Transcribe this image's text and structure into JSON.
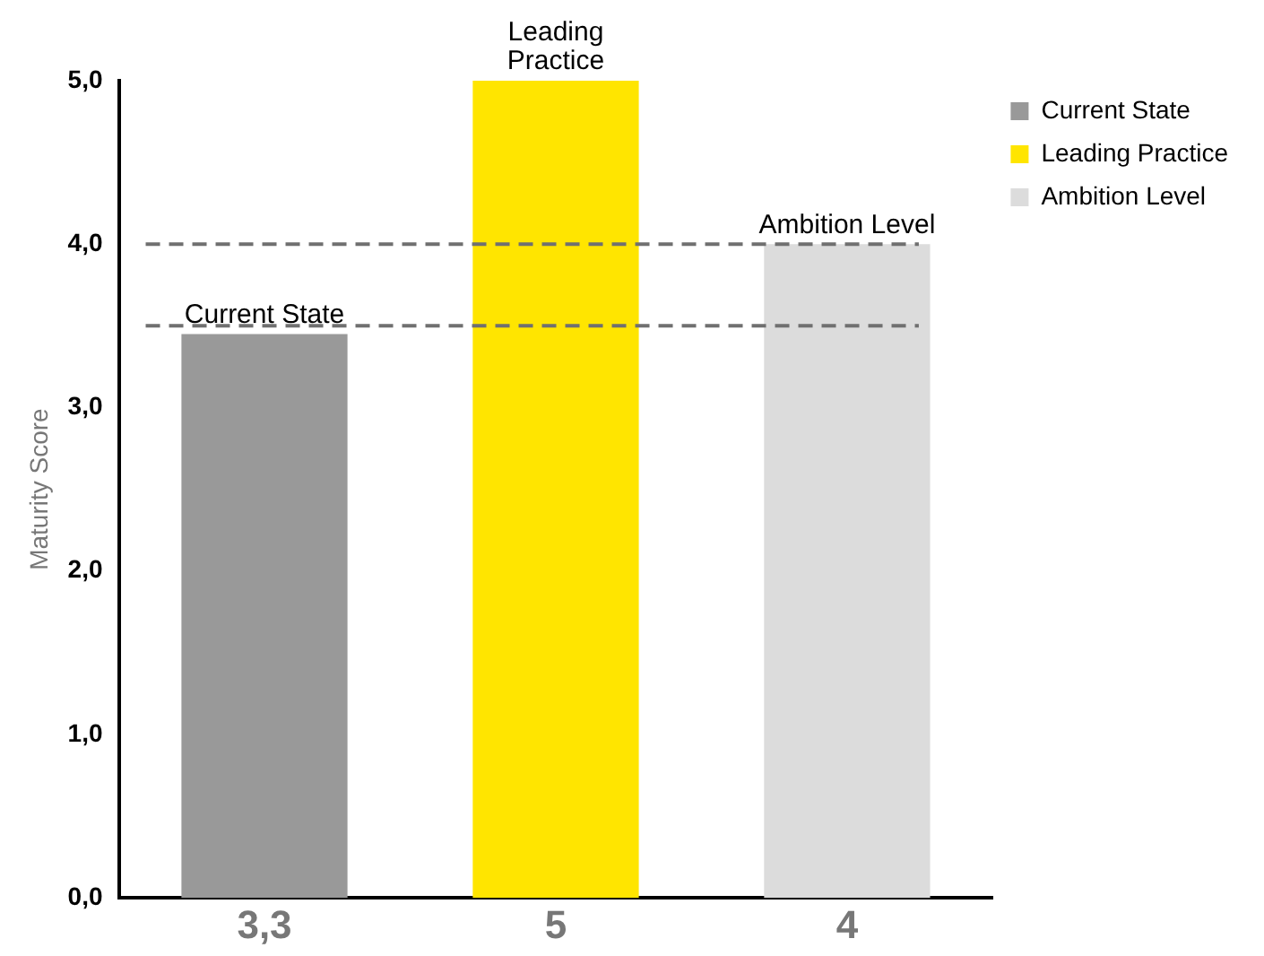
{
  "chart_data": {
    "type": "bar",
    "ylabel": "Maturity Score",
    "categories": [
      "3,3",
      "5",
      "4"
    ],
    "series": [
      {
        "name": "Current State",
        "color": "#999999",
        "values": [
          3.45,
          null,
          null
        ]
      },
      {
        "name": "Leading Practice",
        "color": "#ffe500",
        "values": [
          null,
          5,
          null
        ]
      },
      {
        "name": "Ambition Level",
        "color": "#dcdcdc",
        "values": [
          null,
          null,
          4
        ]
      }
    ],
    "ylim": [
      0,
      5
    ],
    "yticks": [
      {
        "value": 0,
        "label": "0,0"
      },
      {
        "value": 1,
        "label": "1,0"
      },
      {
        "value": 2,
        "label": "2,0"
      },
      {
        "value": 3,
        "label": "3,0"
      },
      {
        "value": 4,
        "label": "4,0"
      },
      {
        "value": 5,
        "label": "5,0"
      }
    ],
    "ref_lines": [
      {
        "axis": "y",
        "value": 3.5,
        "color": "#707070",
        "line_style": "dashed"
      },
      {
        "axis": "y",
        "value": 4,
        "color": "#707070",
        "line_style": "dashed"
      }
    ],
    "annotations": [
      {
        "text": "Current State",
        "x": "3,3",
        "y": 3.45
      },
      {
        "text": "Leading Practice",
        "x": "5",
        "y": 5
      },
      {
        "text": "Ambition Level",
        "x": "4",
        "y": 4
      }
    ],
    "grid": false,
    "legend": "top right"
  }
}
